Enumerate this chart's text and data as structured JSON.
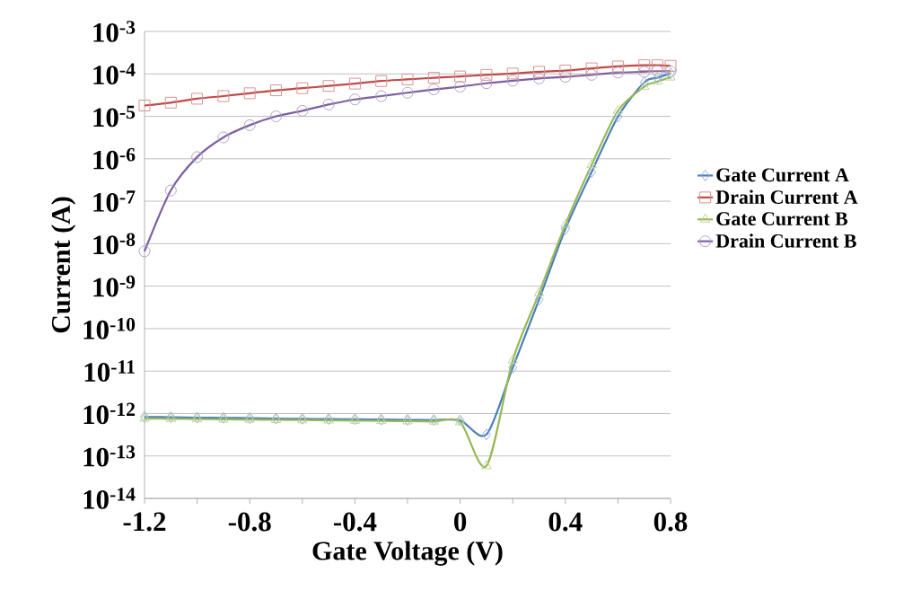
{
  "chart_data": {
    "type": "line",
    "xlabel": "Gate Voltage (V)",
    "ylabel": "Current (A)",
    "xlim": [
      -1.2,
      0.8
    ],
    "ylim": [
      1e-14,
      0.001
    ],
    "log": "y",
    "grid": "y",
    "legend": "right",
    "xticks": [
      -1.2,
      {
        "value": -1.0,
        "label": null
      },
      -0.8,
      {
        "value": -0.6,
        "label": null
      },
      -0.4,
      {
        "value": -0.2,
        "label": null
      },
      0,
      {
        "value": 0.2,
        "label": null
      },
      0.4,
      {
        "value": 0.6,
        "label": null
      },
      0.8
    ],
    "yticks": [
      {
        "value": 0.001,
        "label": "10$^{-3}$"
      },
      {
        "value": 0.0001,
        "label": "10$^{-4}$"
      },
      {
        "value": 1e-05,
        "label": "10$^{-5}$"
      },
      {
        "value": 1e-06,
        "label": "10$^{-6}$"
      },
      {
        "value": 1e-07,
        "label": "10$^{-7}$"
      },
      {
        "value": 1e-08,
        "label": "10$^{-8}$"
      },
      {
        "value": 1e-09,
        "label": "10$^{-9}$"
      },
      {
        "value": 1e-10,
        "label": "10$^{-10}$"
      },
      {
        "value": 1e-11,
        "label": "10$^{-11}$"
      },
      {
        "value": 1e-12,
        "label": "10$^{-12}$"
      },
      {
        "value": 1e-13,
        "label": "10$^{-13}$"
      },
      {
        "value": 1e-14,
        "label": "10$^{-14}$"
      }
    ],
    "x": [
      -1.2,
      -1.1,
      -1.0,
      -0.9,
      -0.8,
      -0.7,
      -0.6,
      -0.5,
      -0.4,
      -0.3,
      -0.2,
      -0.1,
      0,
      0.1,
      0.2,
      0.3,
      0.4,
      0.5,
      0.6,
      0.7,
      0.75,
      0.8
    ],
    "series": [
      {
        "name": "Gate Current A",
        "color": "#4a7ebb",
        "marker": "diamond",
        "values": [
          8.3e-13,
          8.2e-13,
          8e-13,
          7.9e-13,
          7.8e-13,
          7.6e-13,
          7.5e-13,
          7.4e-13,
          7.3e-13,
          7.2e-13,
          7.1e-13,
          7e-13,
          6.9e-13,
          3.2e-13,
          1.2e-11,
          4.8e-10,
          2.2e-08,
          4.9e-07,
          9.8e-06,
          6.3e-05,
          8.1e-05,
          0.000102
        ]
      },
      {
        "name": "Drain Current A",
        "color": "#be4b48",
        "marker": "square",
        "values": [
          1.8e-05,
          2.1e-05,
          2.6e-05,
          3e-05,
          3.5e-05,
          4.1e-05,
          4.6e-05,
          5.2e-05,
          5.9e-05,
          6.8e-05,
          7.4e-05,
          8.1e-05,
          8.7e-05,
          9.5e-05,
          0.000102,
          0.000112,
          0.00012,
          0.000135,
          0.00015,
          0.00016,
          0.00016,
          0.000155
        ]
      },
      {
        "name": "Gate Current B",
        "color": "#98b954",
        "marker": "triangle",
        "values": [
          7.6e-13,
          7.5e-13,
          7.4e-13,
          7.3e-13,
          7.2e-13,
          7.1e-13,
          7e-13,
          6.9e-13,
          6.8e-13,
          6.7e-13,
          6.6e-13,
          6.5e-13,
          6.3e-13,
          5.8e-14,
          1.8e-11,
          6.8e-10,
          2.8e-08,
          7.2e-07,
          1.35e-05,
          5e-05,
          6.6e-05,
          8.3e-05
        ]
      },
      {
        "name": "Drain Current B",
        "color": "#7d60a0",
        "marker": "circle",
        "values": [
          6.6e-09,
          1.8e-07,
          1.1e-06,
          3.2e-06,
          6.2e-06,
          1e-05,
          1.35e-05,
          1.9e-05,
          2.5e-05,
          3e-05,
          3.6e-05,
          4.3e-05,
          5e-05,
          6e-05,
          6.9e-05,
          7.8e-05,
          8.5e-05,
          9.5e-05,
          0.000107,
          0.000112,
          0.000117,
          0.000115
        ]
      }
    ]
  }
}
